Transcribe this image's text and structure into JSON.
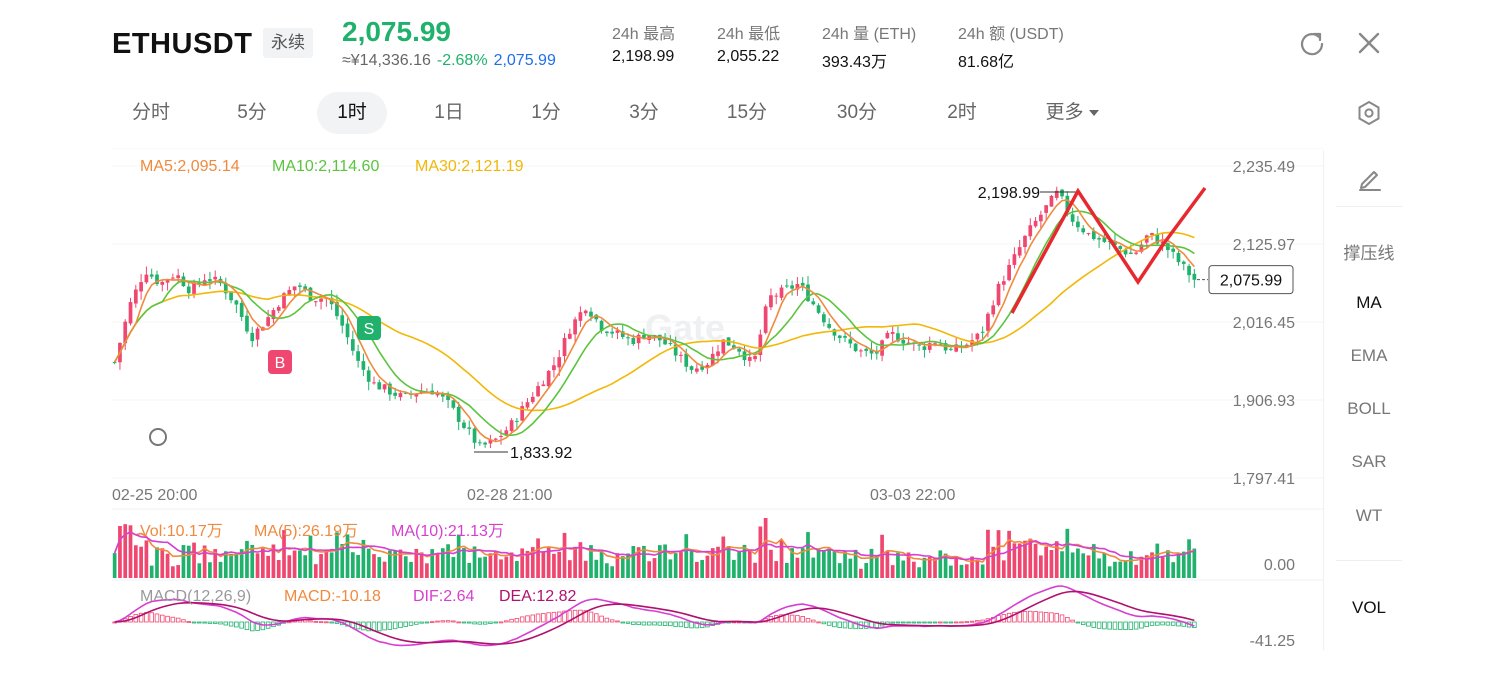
{
  "header": {
    "symbol": "ETHUSDT",
    "contract_type": "永续",
    "last_price": "2,075.99",
    "cny_price": "≈¥14,336.16",
    "change_pct": "-2.68%",
    "mark_price": "2,075.99",
    "stats": [
      {
        "label": "24h  最高",
        "value": "2,198.99"
      },
      {
        "label": "24h  最低",
        "value": "2,055.22"
      },
      {
        "label": "24h  量 (ETH)",
        "value": "393.43万"
      },
      {
        "label": "24h  额 (USDT)",
        "value": "81.68亿"
      }
    ],
    "icons": [
      "refresh-icon",
      "close-icon"
    ]
  },
  "tabs": [
    {
      "label": "分时",
      "active": false
    },
    {
      "label": "5分",
      "active": false
    },
    {
      "label": "1时",
      "active": true
    },
    {
      "label": "1日",
      "active": false
    },
    {
      "label": "1分",
      "active": false
    },
    {
      "label": "3分",
      "active": false
    },
    {
      "label": "15分",
      "active": false
    },
    {
      "label": "30分",
      "active": false
    },
    {
      "label": "2时",
      "active": false
    },
    {
      "label": "更多",
      "active": false
    }
  ],
  "sidebar": {
    "items": [
      {
        "label": "撑压线",
        "active": false
      },
      {
        "label": "MA",
        "active": true
      },
      {
        "label": "EMA",
        "active": false
      },
      {
        "label": "BOLL",
        "active": false
      },
      {
        "label": "SAR",
        "active": false
      },
      {
        "label": "WT",
        "active": false
      },
      {
        "label": "VOL",
        "active": false
      }
    ]
  },
  "legends": {
    "ma5": "MA5:2,095.14",
    "ma10": "MA10:2,114.60",
    "ma30": "MA30:2,121.19",
    "vol": "Vol:10.17万",
    "vol_ma5": "MA(5):26.19万",
    "vol_ma10": "MA(10):21.13万",
    "macd_name": "MACD(12,26,9)",
    "macd": "MACD:-10.18",
    "dif": "DIF:2.64",
    "dea": "DEA:12.82"
  },
  "colors": {
    "up": "#20b26c",
    "down": "#ef476f",
    "ma5": "#f08a3e",
    "ma10": "#5bc43d",
    "ma30": "#f2b707",
    "macd_dif": "#d63fd0",
    "macd_dea": "#b0106f",
    "pattern": "#e8282f",
    "mark_price": "#1f6feb"
  },
  "watermark": "Gate",
  "chart_data": {
    "type": "candlestick",
    "interval": "1h",
    "price_axis_ticks": [
      "2,235.49",
      "2,125.97",
      "2,016.45",
      "1,906.93",
      "1,797.41"
    ],
    "price_ylim": [
      1797.41,
      2235.49
    ],
    "time_ticks": [
      "02-25 20:00",
      "02-28 21:00",
      "03-03 22:00"
    ],
    "current_price_label": "2,075.99",
    "annotations": {
      "high": "2,198.99",
      "low": "1,833.92",
      "buy_marker": "B",
      "sell_marker": "S"
    },
    "volume_axis_label": "0.00",
    "macd_axis_label": "-41.25",
    "close_path": [
      1960,
      2040,
      2090,
      2070,
      2085,
      2060,
      2080,
      2070,
      2040,
      1995,
      2020,
      2050,
      2070,
      2050,
      2050,
      2010,
      1960,
      1930,
      1920,
      1910,
      1920,
      1920,
      1900,
      1870,
      1840,
      1850,
      1870,
      1900,
      1930,
      1960,
      2010,
      2040,
      2010,
      2000,
      1990,
      2000,
      1990,
      1970,
      1950,
      1960,
      1990,
      1980,
      1955,
      2050,
      2060,
      2070,
      2040,
      2010,
      1990,
      1975,
      1970,
      2000,
      1990,
      1980,
      1990,
      1975,
      1985,
      2000,
      2060,
      2100,
      2140,
      2170,
      2198,
      2160,
      2140,
      2130,
      2120,
      2110,
      2140,
      2125,
      2100,
      2076
    ]
  }
}
